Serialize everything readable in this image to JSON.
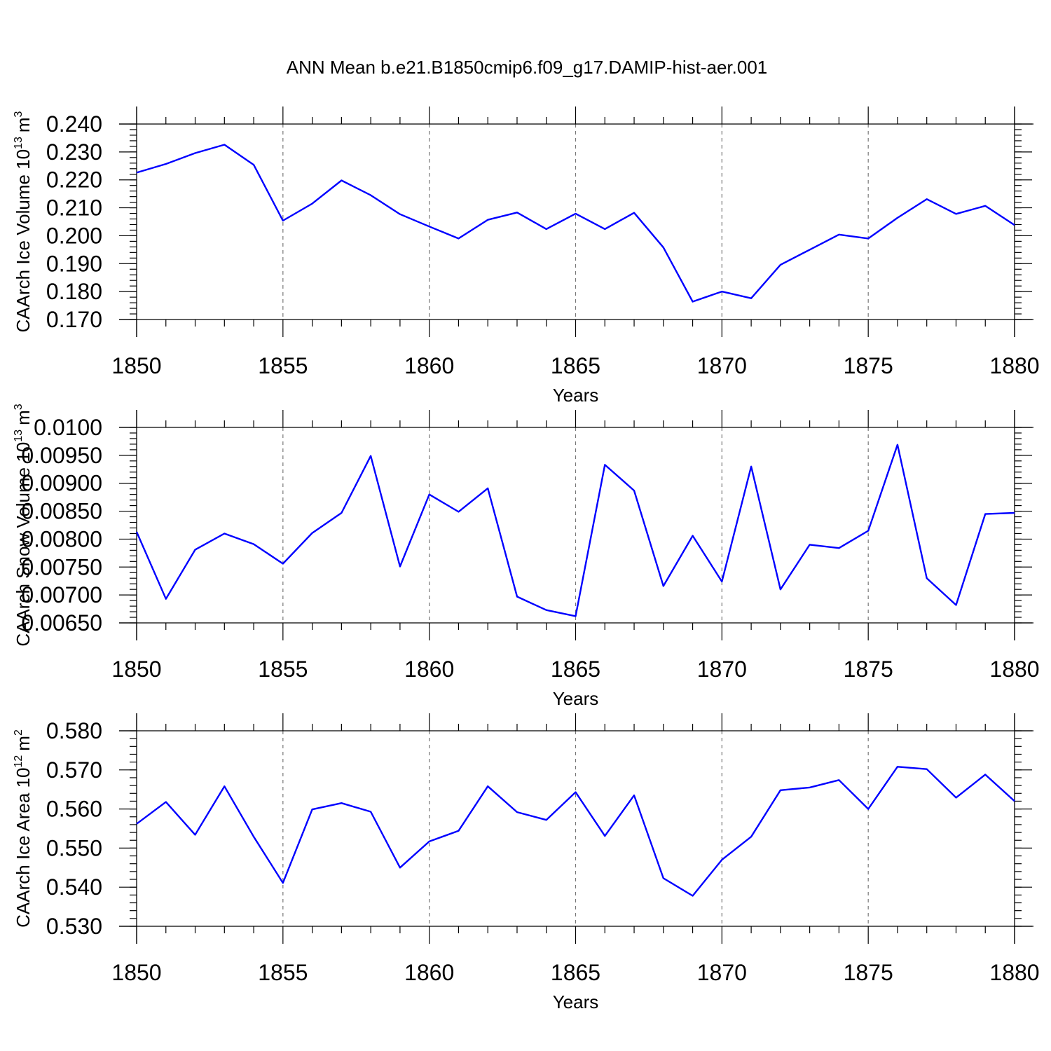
{
  "title": "ANN Mean b.e21.B1850cmip6.f09_g17.DAMIP-hist-aer.001",
  "chart_data": [
    {
      "type": "line",
      "ylabel": "CAArch Ice Volume 10",
      "ylabel_sup": "13",
      "ylabel_unit": "m",
      "ylabel_unit_sup": "3",
      "xlabel": "Years",
      "xlim": [
        1850,
        1880
      ],
      "ylim": [
        0.17,
        0.24
      ],
      "yticks": [
        0.17,
        0.18,
        0.19,
        0.2,
        0.21,
        0.22,
        0.23,
        0.24
      ],
      "ytick_labels": [
        "0.170",
        "0.180",
        "0.190",
        "0.200",
        "0.210",
        "0.220",
        "0.230",
        "0.240"
      ],
      "ytick_minor_step": 0.002,
      "xticks": [
        1850,
        1855,
        1860,
        1865,
        1870,
        1875,
        1880
      ],
      "xtick_labels": [
        "1850",
        "1855",
        "1860",
        "1865",
        "1870",
        "1875",
        "1880"
      ],
      "grid": "vertical dashed at major x ticks",
      "color": "#0000ff",
      "x": [
        1850,
        1851,
        1852,
        1853,
        1854,
        1855,
        1856,
        1857,
        1858,
        1859,
        1860,
        1861,
        1862,
        1863,
        1864,
        1865,
        1866,
        1867,
        1868,
        1869,
        1870,
        1871,
        1872,
        1873,
        1874,
        1875,
        1876,
        1877,
        1878,
        1879,
        1880
      ],
      "values": [
        0.2226,
        0.2257,
        0.2296,
        0.2326,
        0.2254,
        0.2054,
        0.2115,
        0.2198,
        0.2145,
        0.2077,
        0.2033,
        0.199,
        0.2057,
        0.2083,
        0.2024,
        0.2079,
        0.2024,
        0.2082,
        0.1958,
        0.1764,
        0.18,
        0.1776,
        0.1896,
        0.195,
        0.2004,
        0.199,
        0.2064,
        0.2131,
        0.2078,
        0.2107,
        0.2038
      ]
    },
    {
      "type": "line",
      "ylabel": "CAArch Snow Volume 10",
      "ylabel_sup": "13",
      "ylabel_unit": "m",
      "ylabel_unit_sup": "3",
      "xlabel": "Years",
      "xlim": [
        1850,
        1880
      ],
      "ylim": [
        0.0065,
        0.01
      ],
      "yticks": [
        0.0065,
        0.007,
        0.0075,
        0.008,
        0.0085,
        0.009,
        0.0095,
        0.01
      ],
      "ytick_labels": [
        "0.00650",
        "0.00700",
        "0.00750",
        "0.00800",
        "0.00850",
        "0.00900",
        "0.00950",
        "0.0100"
      ],
      "ytick_minor_step": 0.0001,
      "xticks": [
        1850,
        1855,
        1860,
        1865,
        1870,
        1875,
        1880
      ],
      "xtick_labels": [
        "1850",
        "1855",
        "1860",
        "1865",
        "1870",
        "1875",
        "1880"
      ],
      "grid": "vertical dashed at major x ticks",
      "color": "#0000ff",
      "x": [
        1850,
        1851,
        1852,
        1853,
        1854,
        1855,
        1856,
        1857,
        1858,
        1859,
        1860,
        1861,
        1862,
        1863,
        1864,
        1865,
        1866,
        1867,
        1868,
        1869,
        1870,
        1871,
        1872,
        1873,
        1874,
        1875,
        1876,
        1877,
        1878,
        1879,
        1880
      ],
      "values": [
        0.00813,
        0.00693,
        0.00781,
        0.0081,
        0.00791,
        0.00756,
        0.00811,
        0.00847,
        0.00949,
        0.00751,
        0.0088,
        0.00849,
        0.00891,
        0.00697,
        0.00673,
        0.00662,
        0.00933,
        0.00887,
        0.00716,
        0.00806,
        0.00724,
        0.0093,
        0.0071,
        0.0079,
        0.00784,
        0.00815,
        0.00969,
        0.0073,
        0.00682,
        0.00845,
        0.00847
      ]
    },
    {
      "type": "line",
      "ylabel": "CAArch Ice Area 10",
      "ylabel_sup": "12",
      "ylabel_unit": "m",
      "ylabel_unit_sup": "2",
      "xlabel": "Years",
      "xlim": [
        1850,
        1880
      ],
      "ylim": [
        0.53,
        0.58
      ],
      "yticks": [
        0.53,
        0.54,
        0.55,
        0.56,
        0.57,
        0.58
      ],
      "ytick_labels": [
        "0.530",
        "0.540",
        "0.550",
        "0.560",
        "0.570",
        "0.580"
      ],
      "ytick_minor_step": 0.002,
      "xticks": [
        1850,
        1855,
        1860,
        1865,
        1870,
        1875,
        1880
      ],
      "xtick_labels": [
        "1850",
        "1855",
        "1860",
        "1865",
        "1870",
        "1875",
        "1880"
      ],
      "grid": "vertical dashed at major x ticks",
      "color": "#0000ff",
      "x": [
        1850,
        1851,
        1852,
        1853,
        1854,
        1855,
        1856,
        1857,
        1858,
        1859,
        1860,
        1861,
        1862,
        1863,
        1864,
        1865,
        1866,
        1867,
        1868,
        1869,
        1870,
        1871,
        1872,
        1873,
        1874,
        1875,
        1876,
        1877,
        1878,
        1879,
        1880
      ],
      "values": [
        0.5562,
        0.5618,
        0.5534,
        0.5658,
        0.5529,
        0.5411,
        0.5599,
        0.5615,
        0.5593,
        0.545,
        0.5517,
        0.5544,
        0.5658,
        0.5592,
        0.5572,
        0.5643,
        0.5531,
        0.5635,
        0.5423,
        0.5378,
        0.547,
        0.5529,
        0.5648,
        0.5655,
        0.5674,
        0.56,
        0.5708,
        0.5702,
        0.5629,
        0.5688,
        0.562
      ]
    }
  ]
}
